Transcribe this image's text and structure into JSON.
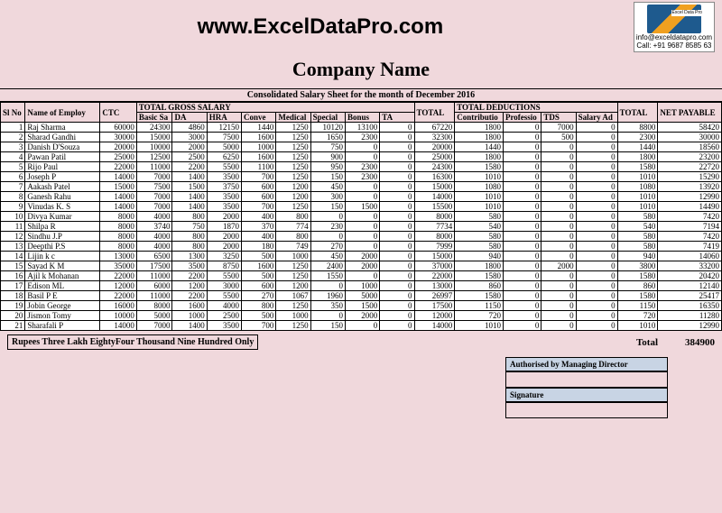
{
  "header": {
    "website": "www.ExcelDataPro.com",
    "email": "info@exceldatapro.com",
    "phone": "Call: +91 9687 8585 63",
    "company": "Company Name",
    "sheet_title": "Consolidated Salary Sheet for the month of  December 2016"
  },
  "columns": {
    "sl": "Sl No",
    "name": "Name of Employ",
    "ctc": "CTC",
    "gross_group": "TOTAL GROSS SALARY",
    "basic": "Basic Sa",
    "da": "DA",
    "hra": "HRA",
    "conve": "Conve",
    "medical": "Medical",
    "special": "Special",
    "bonus": "Bonus",
    "ta": "TA",
    "gross_total": "TOTAL",
    "ded_group": "TOTAL DEDUCTIONS",
    "contrib": "Contributio",
    "prof": "Professio",
    "tds": "TDS",
    "sal_adv": "Salary Ad",
    "ded_total": "TOTAL",
    "net": "NET PAYABLE"
  },
  "rows": [
    {
      "sl": 1,
      "name": "Raj Sharma",
      "ctc": 60000,
      "basic": 24300,
      "da": 4860,
      "hra": 12150,
      "conve": 1440,
      "medical": 1250,
      "special": 10120,
      "bonus": 13100,
      "ta": 0,
      "gross": 67220,
      "contrib": 1800,
      "prof": 0,
      "tds": 7000,
      "sal_adv": 0,
      "ded": 8800,
      "net": 58420
    },
    {
      "sl": 2,
      "name": "Sharad Gandhi",
      "ctc": 30000,
      "basic": 15000,
      "da": 3000,
      "hra": 7500,
      "conve": 1600,
      "medical": 1250,
      "special": 1650,
      "bonus": 2300,
      "ta": 0,
      "gross": 32300,
      "contrib": 1800,
      "prof": 0,
      "tds": 500,
      "sal_adv": 0,
      "ded": 2300,
      "net": 30000
    },
    {
      "sl": 3,
      "name": "Danish D'Souza",
      "ctc": 20000,
      "basic": 10000,
      "da": 2000,
      "hra": 5000,
      "conve": 1000,
      "medical": 1250,
      "special": 750,
      "bonus": 0,
      "ta": 0,
      "gross": 20000,
      "contrib": 1440,
      "prof": 0,
      "tds": 0,
      "sal_adv": 0,
      "ded": 1440,
      "net": 18560
    },
    {
      "sl": 4,
      "name": "Pawan Patil",
      "ctc": 25000,
      "basic": 12500,
      "da": 2500,
      "hra": 6250,
      "conve": 1600,
      "medical": 1250,
      "special": 900,
      "bonus": 0,
      "ta": 0,
      "gross": 25000,
      "contrib": 1800,
      "prof": 0,
      "tds": 0,
      "sal_adv": 0,
      "ded": 1800,
      "net": 23200
    },
    {
      "sl": 5,
      "name": "Rijo Paul",
      "ctc": 22000,
      "basic": 11000,
      "da": 2200,
      "hra": 5500,
      "conve": 1100,
      "medical": 1250,
      "special": 950,
      "bonus": 2300,
      "ta": 0,
      "gross": 24300,
      "contrib": 1580,
      "prof": 0,
      "tds": 0,
      "sal_adv": 0,
      "ded": 1580,
      "net": 22720
    },
    {
      "sl": 6,
      "name": "Joseph P",
      "ctc": 14000,
      "basic": 7000,
      "da": 1400,
      "hra": 3500,
      "conve": 700,
      "medical": 1250,
      "special": 150,
      "bonus": 2300,
      "ta": 0,
      "gross": 16300,
      "contrib": 1010,
      "prof": 0,
      "tds": 0,
      "sal_adv": 0,
      "ded": 1010,
      "net": 15290
    },
    {
      "sl": 7,
      "name": "Aakash Patel",
      "ctc": 15000,
      "basic": 7500,
      "da": 1500,
      "hra": 3750,
      "conve": 600,
      "medical": 1200,
      "special": 450,
      "bonus": 0,
      "ta": 0,
      "gross": 15000,
      "contrib": 1080,
      "prof": 0,
      "tds": 0,
      "sal_adv": 0,
      "ded": 1080,
      "net": 13920
    },
    {
      "sl": 8,
      "name": "Ganesh Rahu",
      "ctc": 14000,
      "basic": 7000,
      "da": 1400,
      "hra": 3500,
      "conve": 600,
      "medical": 1200,
      "special": 300,
      "bonus": 0,
      "ta": 0,
      "gross": 14000,
      "contrib": 1010,
      "prof": 0,
      "tds": 0,
      "sal_adv": 0,
      "ded": 1010,
      "net": 12990
    },
    {
      "sl": 9,
      "name": "Vinudas K. S",
      "ctc": 14000,
      "basic": 7000,
      "da": 1400,
      "hra": 3500,
      "conve": 700,
      "medical": 1250,
      "special": 150,
      "bonus": 1500,
      "ta": 0,
      "gross": 15500,
      "contrib": 1010,
      "prof": 0,
      "tds": 0,
      "sal_adv": 0,
      "ded": 1010,
      "net": 14490
    },
    {
      "sl": 10,
      "name": "Divya Kumar",
      "ctc": 8000,
      "basic": 4000,
      "da": 800,
      "hra": 2000,
      "conve": 400,
      "medical": 800,
      "special": 0,
      "bonus": 0,
      "ta": 0,
      "gross": 8000,
      "contrib": 580,
      "prof": 0,
      "tds": 0,
      "sal_adv": 0,
      "ded": 580,
      "net": 7420
    },
    {
      "sl": 11,
      "name": "Shilpa R",
      "ctc": 8000,
      "basic": 3740,
      "da": 750,
      "hra": 1870,
      "conve": 370,
      "medical": 774,
      "special": 230,
      "bonus": 0,
      "ta": 0,
      "gross": 7734,
      "contrib": 540,
      "prof": 0,
      "tds": 0,
      "sal_adv": 0,
      "ded": 540,
      "net": 7194
    },
    {
      "sl": 12,
      "name": "Sindhu J.P",
      "ctc": 8000,
      "basic": 4000,
      "da": 800,
      "hra": 2000,
      "conve": 400,
      "medical": 800,
      "special": 0,
      "bonus": 0,
      "ta": 0,
      "gross": 8000,
      "contrib": 580,
      "prof": 0,
      "tds": 0,
      "sal_adv": 0,
      "ded": 580,
      "net": 7420
    },
    {
      "sl": 13,
      "name": "Deepthi P.S",
      "ctc": 8000,
      "basic": 4000,
      "da": 800,
      "hra": 2000,
      "conve": 180,
      "medical": 749,
      "special": 270,
      "bonus": 0,
      "ta": 0,
      "gross": 7999,
      "contrib": 580,
      "prof": 0,
      "tds": 0,
      "sal_adv": 0,
      "ded": 580,
      "net": 7419
    },
    {
      "sl": 14,
      "name": "Lijin k c",
      "ctc": 13000,
      "basic": 6500,
      "da": 1300,
      "hra": 3250,
      "conve": 500,
      "medical": 1000,
      "special": 450,
      "bonus": 2000,
      "ta": 0,
      "gross": 15000,
      "contrib": 940,
      "prof": 0,
      "tds": 0,
      "sal_adv": 0,
      "ded": 940,
      "net": 14060
    },
    {
      "sl": 15,
      "name": "Sayad K M",
      "ctc": 35000,
      "basic": 17500,
      "da": 3500,
      "hra": 8750,
      "conve": 1600,
      "medical": 1250,
      "special": 2400,
      "bonus": 2000,
      "ta": 0,
      "gross": 37000,
      "contrib": 1800,
      "prof": 0,
      "tds": 2000,
      "sal_adv": 0,
      "ded": 3800,
      "net": 33200
    },
    {
      "sl": 16,
      "name": "Ajil k Mohanan",
      "ctc": 22000,
      "basic": 11000,
      "da": 2200,
      "hra": 5500,
      "conve": 500,
      "medical": 1250,
      "special": 1550,
      "bonus": 0,
      "ta": 0,
      "gross": 22000,
      "contrib": 1580,
      "prof": 0,
      "tds": 0,
      "sal_adv": 0,
      "ded": 1580,
      "net": 20420
    },
    {
      "sl": 17,
      "name": "Edison ML",
      "ctc": 12000,
      "basic": 6000,
      "da": 1200,
      "hra": 3000,
      "conve": 600,
      "medical": 1200,
      "special": 0,
      "bonus": 1000,
      "ta": 0,
      "gross": 13000,
      "contrib": 860,
      "prof": 0,
      "tds": 0,
      "sal_adv": 0,
      "ded": 860,
      "net": 12140
    },
    {
      "sl": 18,
      "name": "Basil P E",
      "ctc": 22000,
      "basic": 11000,
      "da": 2200,
      "hra": 5500,
      "conve": 270,
      "medical": 1067,
      "special": 1960,
      "bonus": 5000,
      "ta": 0,
      "gross": 26997,
      "contrib": 1580,
      "prof": 0,
      "tds": 0,
      "sal_adv": 0,
      "ded": 1580,
      "net": 25417
    },
    {
      "sl": 19,
      "name": "Jobin George",
      "ctc": 16000,
      "basic": 8000,
      "da": 1600,
      "hra": 4000,
      "conve": 800,
      "medical": 1250,
      "special": 350,
      "bonus": 1500,
      "ta": 0,
      "gross": 17500,
      "contrib": 1150,
      "prof": 0,
      "tds": 0,
      "sal_adv": 0,
      "ded": 1150,
      "net": 16350
    },
    {
      "sl": 20,
      "name": "Jismon Tomy",
      "ctc": 10000,
      "basic": 5000,
      "da": 1000,
      "hra": 2500,
      "conve": 500,
      "medical": 1000,
      "special": 0,
      "bonus": 2000,
      "ta": 0,
      "gross": 12000,
      "contrib": 720,
      "prof": 0,
      "tds": 0,
      "sal_adv": 0,
      "ded": 720,
      "net": 11280
    },
    {
      "sl": 21,
      "name": "Sharafali P",
      "ctc": 14000,
      "basic": 7000,
      "da": 1400,
      "hra": 3500,
      "conve": 700,
      "medical": 1250,
      "special": 150,
      "bonus": 0,
      "ta": 0,
      "gross": 14000,
      "contrib": 1010,
      "prof": 0,
      "tds": 0,
      "sal_adv": 0,
      "ded": 1010,
      "net": 12990
    }
  ],
  "footer": {
    "words": "Rupees Three Lakh EightyFour Thousand Nine Hundred  Only",
    "total_label": "Total",
    "total_value": 384900,
    "auth": "Authorised by Managing Director",
    "sig": "Signature"
  }
}
